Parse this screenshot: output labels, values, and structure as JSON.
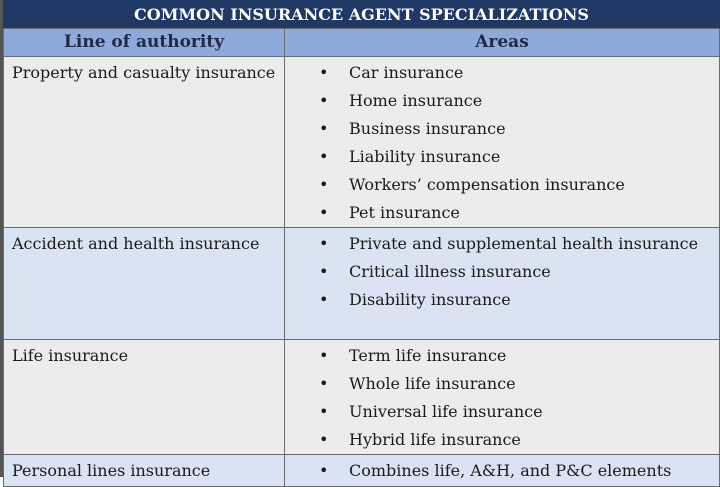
{
  "title": "COMMON INSURANCE AGENT SPECIALIZATIONS",
  "headers": [
    "Line of authority",
    "Areas"
  ],
  "rows": [
    {
      "line": "Property and casualty insurance",
      "areas": [
        "Car insurance",
        "Home insurance",
        "Business insurance",
        "Liability insurance",
        "Workers’ compensation insurance",
        "Pet insurance"
      ]
    },
    {
      "line": "Accident and health insurance",
      "areas": [
        "Private and supplemental health insurance",
        "Critical illness insurance",
        "Disability insurance"
      ]
    },
    {
      "line": "Life insurance",
      "areas": [
        "Term life insurance",
        "Whole life insurance",
        "Universal life insurance",
        "Hybrid life insurance"
      ]
    },
    {
      "line": "Personal lines insurance",
      "areas": [
        "Combines life, A&H, and P&C elements"
      ]
    }
  ],
  "colors": {
    "title_bg": "#1f3864",
    "header_bg": "#8eaadb",
    "row_gray": "#ececec",
    "row_blue": "#dae3f3"
  }
}
